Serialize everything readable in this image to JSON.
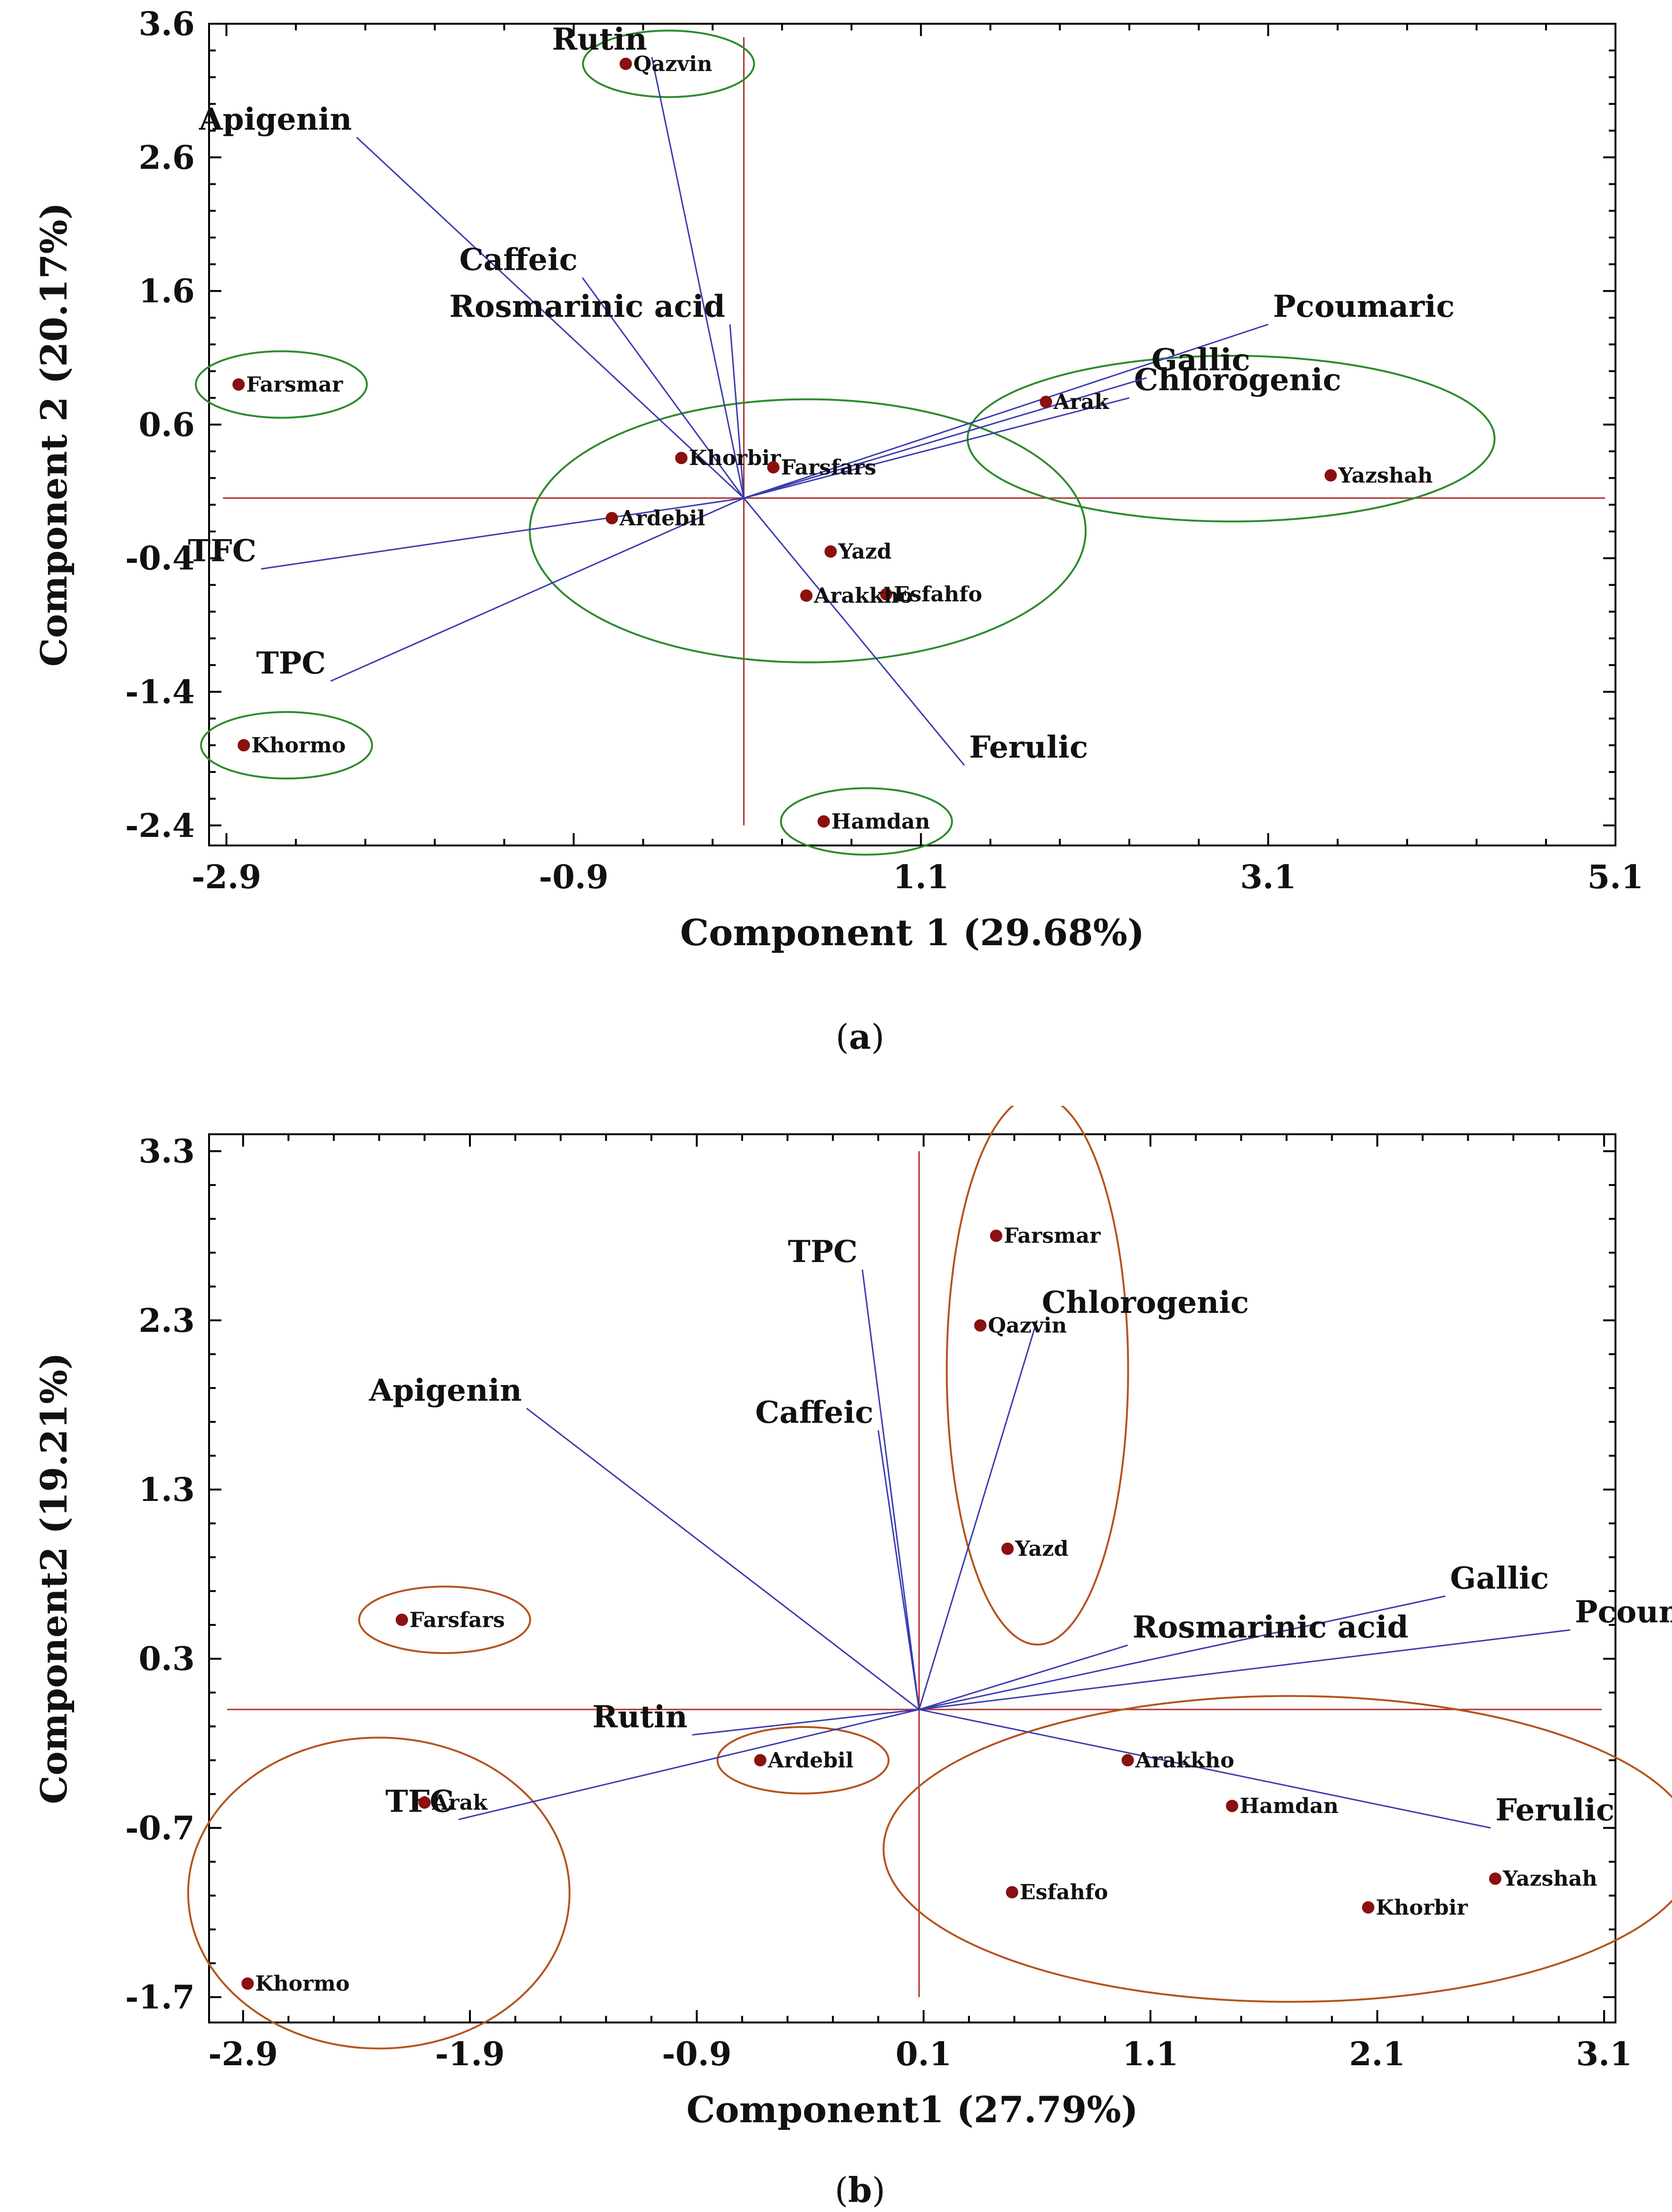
{
  "chart_data": [
    {
      "panel": "a",
      "caption_label": "a",
      "type": "biplot",
      "xlabel": "Component 1 (29.68%)",
      "ylabel": "Component 2 (20.17%)",
      "xlim": [
        -3.0,
        5.1
      ],
      "ylim": [
        -2.55,
        3.6
      ],
      "xticks": [
        -2.9,
        -0.9,
        1.1,
        3.1,
        5.1
      ],
      "yticks": [
        3.6,
        2.6,
        1.6,
        0.6,
        -0.4,
        -1.4,
        -2.4
      ],
      "xtick_labels": [
        "-2.9",
        "-0.9",
        "1.1",
        "3.1",
        "5.1"
      ],
      "ytick_labels": [
        "3.6",
        "2.6",
        "1.6",
        "0.6",
        "-0.4",
        "-1.4",
        "-2.4"
      ],
      "origin": [
        0.08,
        0.05
      ],
      "samples": [
        {
          "name": "Qazvin",
          "x": -0.6,
          "y": 3.3
        },
        {
          "name": "Farsmar",
          "x": -2.83,
          "y": 0.9
        },
        {
          "name": "Khorbir",
          "x": -0.28,
          "y": 0.35
        },
        {
          "name": "Farsfars",
          "x": 0.25,
          "y": 0.28
        },
        {
          "name": "Ardebil",
          "x": -0.68,
          "y": -0.1
        },
        {
          "name": "Yazd",
          "x": 0.58,
          "y": -0.35
        },
        {
          "name": "Esfahfo",
          "x": 0.9,
          "y": -0.67
        },
        {
          "name": "Arakkho",
          "x": 0.44,
          "y": -0.68
        },
        {
          "name": "Arak",
          "x": 1.82,
          "y": 0.77
        },
        {
          "name": "Yazshah",
          "x": 3.46,
          "y": 0.22
        },
        {
          "name": "Khormo",
          "x": -2.8,
          "y": -1.8
        },
        {
          "name": "Hamdan",
          "x": 0.54,
          "y": -2.37
        }
      ],
      "variables": [
        {
          "name": "Rutin",
          "x": -0.45,
          "y": 3.35
        },
        {
          "name": "Apigenin",
          "x": -2.15,
          "y": 2.75
        },
        {
          "name": "Caffeic",
          "x": -0.85,
          "y": 1.7
        },
        {
          "name": "Rosmarinic acid",
          "x": 0.0,
          "y": 1.35
        },
        {
          "name": "Pcoumaric",
          "x": 3.1,
          "y": 1.35
        },
        {
          "name": "Chlorogenic",
          "x": 2.3,
          "y": 0.8
        },
        {
          "name": "Gallic",
          "x": 2.4,
          "y": 0.95
        },
        {
          "name": "TFC",
          "x": -2.7,
          "y": -0.48
        },
        {
          "name": "TPC",
          "x": -2.3,
          "y": -1.32
        },
        {
          "name": "Ferulic",
          "x": 1.35,
          "y": -1.95
        }
      ],
      "clusters": [
        {
          "members": [
            "Qazvin"
          ]
        },
        {
          "members": [
            "Farsmar"
          ]
        },
        {
          "members": [
            "Khorbir",
            "Farsfars",
            "Ardebil",
            "Yazd",
            "Esfahfo",
            "Arakkho"
          ]
        },
        {
          "members": [
            "Arak",
            "Yazshah"
          ]
        },
        {
          "members": [
            "Khormo"
          ]
        },
        {
          "members": [
            "Hamdan"
          ]
        }
      ],
      "cluster_color": "#2e8b2e"
    },
    {
      "panel": "b",
      "caption_label": "b",
      "type": "biplot",
      "xlabel": "Component1 (27.79%)",
      "ylabel": "Component2 (19.21%)",
      "xlim": [
        -3.05,
        3.15
      ],
      "ylim": [
        -1.85,
        3.4
      ],
      "xticks": [
        -2.9,
        -1.9,
        -0.9,
        0.1,
        1.1,
        2.1,
        3.1
      ],
      "yticks": [
        3.3,
        2.3,
        1.3,
        0.3,
        -0.7,
        -1.7
      ],
      "xtick_labels": [
        "-2.9",
        "-1.9",
        "-0.9",
        "0.1",
        "1.1",
        "2.1",
        "3.1"
      ],
      "ytick_labels": [
        "3.3",
        "2.3",
        "1.3",
        "0.3",
        "-0.7",
        "-1.7"
      ],
      "origin": [
        0.08,
        0.0
      ],
      "samples": [
        {
          "name": "Farsmar",
          "x": 0.42,
          "y": 2.8
        },
        {
          "name": "Qazvin",
          "x": 0.35,
          "y": 2.27
        },
        {
          "name": "Yazd",
          "x": 0.47,
          "y": 0.95
        },
        {
          "name": "Farsfars",
          "x": -2.2,
          "y": 0.53
        },
        {
          "name": "Ardebil",
          "x": -0.62,
          "y": -0.3
        },
        {
          "name": "Arak",
          "x": -2.1,
          "y": -0.55
        },
        {
          "name": "Khormo",
          "x": -2.88,
          "y": -1.62
        },
        {
          "name": "Arakkho",
          "x": 1.0,
          "y": -0.3
        },
        {
          "name": "Hamdan",
          "x": 1.46,
          "y": -0.57
        },
        {
          "name": "Esfahfo",
          "x": 0.49,
          "y": -1.08
        },
        {
          "name": "Yazshah",
          "x": 2.62,
          "y": -1.0
        },
        {
          "name": "Khorbir",
          "x": 2.06,
          "y": -1.17
        }
      ],
      "variables": [
        {
          "name": "TPC",
          "x": -0.17,
          "y": 2.6
        },
        {
          "name": "Chlorogenic",
          "x": 0.6,
          "y": 2.3
        },
        {
          "name": "Apigenin",
          "x": -1.65,
          "y": 1.78
        },
        {
          "name": "Caffeic",
          "x": -0.1,
          "y": 1.65
        },
        {
          "name": "Gallic",
          "x": 2.4,
          "y": 0.67
        },
        {
          "name": "Pcoumaric",
          "x": 2.95,
          "y": 0.47
        },
        {
          "name": "Rosmarinic acid",
          "x": 1.0,
          "y": 0.38
        },
        {
          "name": "Rutin",
          "x": -0.92,
          "y": -0.15
        },
        {
          "name": "TFC",
          "x": -1.95,
          "y": -0.65
        },
        {
          "name": "Ferulic",
          "x": 2.6,
          "y": -0.7
        }
      ],
      "clusters": [
        {
          "members": [
            "Farsmar",
            "Qazvin",
            "Yazd"
          ]
        },
        {
          "members": [
            "Farsfars"
          ]
        },
        {
          "members": [
            "Ardebil"
          ]
        },
        {
          "members": [
            "Arak",
            "Khormo"
          ]
        },
        {
          "members": [
            "Arakkho",
            "Hamdan",
            "Esfahfo",
            "Yazshah",
            "Khorbir"
          ]
        }
      ],
      "cluster_color": "#b5541c"
    }
  ],
  "colors": {
    "point": "#8b1010",
    "loading_line": "#3a3ab0",
    "axis_line": "#b03030"
  }
}
